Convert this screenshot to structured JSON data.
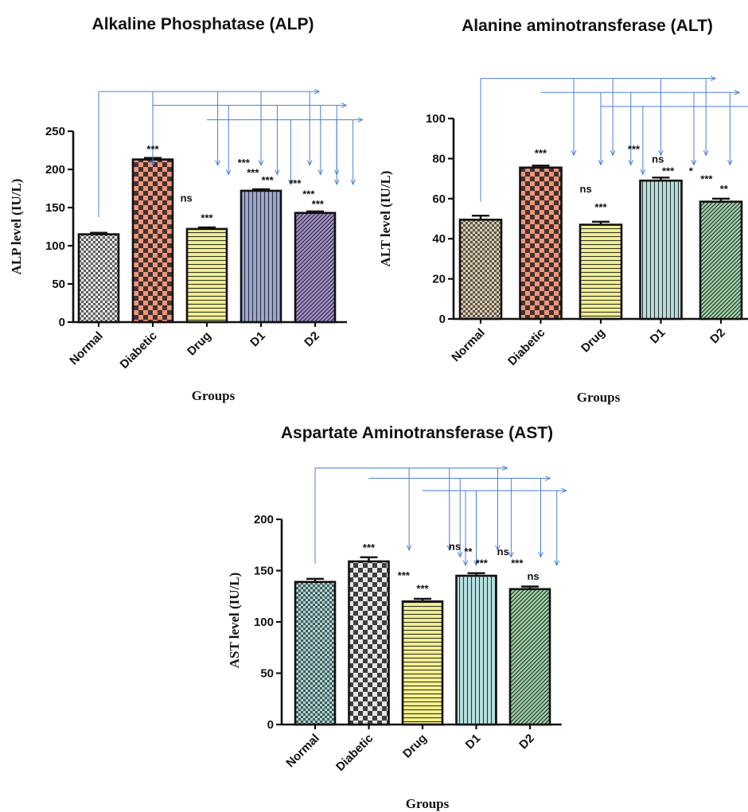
{
  "chart_data": [
    {
      "type": "bar",
      "title": "Alkaline Phosphatase (ALP)",
      "xlabel": "Groups",
      "ylabel": "ALP level (IU/L)",
      "categories": [
        "Normal",
        "Diabetic",
        "Drug",
        "D1",
        "D2"
      ],
      "values": [
        115,
        213,
        122,
        172,
        143
      ],
      "errors": [
        2,
        2,
        2,
        2,
        2
      ],
      "ylim": [
        0,
        250
      ],
      "yticks": [
        0,
        50,
        100,
        150,
        200,
        250
      ],
      "bar_colors": [
        "#e8e8e8",
        "#f1957b",
        "#f4f08a",
        "#9aa6d6",
        "#a68fd0"
      ],
      "patterns": [
        "check-small",
        "check",
        "hlines",
        "vlines",
        "diag"
      ],
      "annotations": [
        {
          "text": "***",
          "x": 1,
          "y": 222
        },
        {
          "text": "ns",
          "x": 1.62,
          "y": 158
        },
        {
          "text": "***",
          "x": 2,
          "y": 132
        },
        {
          "text": "***",
          "x": 2.68,
          "y": 204
        },
        {
          "text": "***",
          "x": 2.85,
          "y": 191
        },
        {
          "text": "***",
          "x": 3.12,
          "y": 181
        },
        {
          "text": "***",
          "x": 3.63,
          "y": 177
        },
        {
          "text": "***",
          "x": 3.88,
          "y": 163
        },
        {
          "text": "***",
          "x": 4.05,
          "y": 150
        }
      ],
      "brackets": [
        {
          "from": 0,
          "to": 3.9,
          "level": 302,
          "drops": [
            1,
            2.2,
            3.0,
            3.9
          ]
        },
        {
          "from": 1,
          "to": 4.4,
          "level": 284,
          "drops": [
            2.4,
            3.3,
            4.1,
            4.4
          ]
        },
        {
          "from": 2,
          "to": 4.7,
          "level": 265,
          "drops": [
            3.55,
            4.4,
            4.7
          ]
        }
      ]
    },
    {
      "type": "bar",
      "title": "Alanine aminotransferase (ALT)",
      "xlabel": "Groups",
      "ylabel": "ALT level (IU/L)",
      "categories": [
        "Normal",
        "Diabetic",
        "Drug",
        "D1",
        "D2"
      ],
      "values": [
        49.5,
        75.5,
        47,
        69,
        58.5
      ],
      "errors": [
        2,
        1,
        1.5,
        1.5,
        1.5
      ],
      "ylim": [
        0,
        100
      ],
      "yticks": [
        0,
        20,
        40,
        60,
        80,
        100
      ],
      "bar_colors": [
        "#dccbad",
        "#f1957b",
        "#f4f08a",
        "#b6e0e0",
        "#9ed4a6"
      ],
      "patterns": [
        "check-small",
        "check",
        "hlines",
        "vlines",
        "diag"
      ],
      "annotations": [
        {
          "text": "***",
          "x": 1,
          "y": 81
        },
        {
          "text": "ns",
          "x": 1.75,
          "y": 63
        },
        {
          "text": "***",
          "x": 2,
          "y": 54
        },
        {
          "text": "***",
          "x": 2.55,
          "y": 83
        },
        {
          "text": "ns",
          "x": 2.95,
          "y": 78
        },
        {
          "text": "***",
          "x": 3.12,
          "y": 72
        },
        {
          "text": "*",
          "x": 3.5,
          "y": 72
        },
        {
          "text": "***",
          "x": 3.76,
          "y": 68
        },
        {
          "text": "**",
          "x": 4.05,
          "y": 63
        }
      ],
      "brackets": [
        {
          "from": 0,
          "to": 3.75,
          "level": 120,
          "drops": [
            1.55,
            2.2,
            3.0,
            3.75
          ]
        },
        {
          "from": 1,
          "to": 4.15,
          "level": 113,
          "drops": [
            2.0,
            2.5,
            3.55,
            4.15
          ]
        },
        {
          "from": 2,
          "to": 4.5,
          "level": 106,
          "drops": [
            2.7,
            4.5
          ]
        }
      ]
    },
    {
      "type": "bar",
      "title": "Aspartate Aminotransferase (AST)",
      "xlabel": "Groups",
      "ylabel": "AST level (IU/L)",
      "categories": [
        "Normal",
        "Diabetic",
        "Drug",
        "D1",
        "D2"
      ],
      "values": [
        139,
        159,
        120,
        145,
        132
      ],
      "errors": [
        3,
        4,
        2.5,
        2.5,
        2.5
      ],
      "ylim": [
        0,
        200
      ],
      "yticks": [
        0,
        50,
        100,
        150,
        200
      ],
      "bar_colors": [
        "#a8d6d6",
        "#e6e6e6",
        "#f4f08a",
        "#b6e0e0",
        "#9ed4a6"
      ],
      "patterns": [
        "check-small",
        "check",
        "hlines",
        "vlines",
        "diag"
      ],
      "annotations": [
        {
          "text": "***",
          "x": 1,
          "y": 169
        },
        {
          "text": "***",
          "x": 1.65,
          "y": 142
        },
        {
          "text": "***",
          "x": 2,
          "y": 129
        },
        {
          "text": "ns",
          "x": 2.6,
          "y": 170
        },
        {
          "text": "**",
          "x": 2.85,
          "y": 165
        },
        {
          "text": "***",
          "x": 3.1,
          "y": 154
        },
        {
          "text": "ns",
          "x": 3.5,
          "y": 165
        },
        {
          "text": "***",
          "x": 3.76,
          "y": 154
        },
        {
          "text": "ns",
          "x": 4.06,
          "y": 141
        }
      ],
      "brackets": [
        {
          "from": 0,
          "to": 3.4,
          "level": 250,
          "drops": [
            1.75,
            2.5,
            3.4
          ]
        },
        {
          "from": 1,
          "to": 4.2,
          "level": 240,
          "drops": [
            2.7,
            3.65,
            4.2
          ]
        },
        {
          "from": 2,
          "to": 4.5,
          "level": 228,
          "drops": [
            2.8,
            3.0,
            4.5
          ]
        }
      ]
    }
  ]
}
